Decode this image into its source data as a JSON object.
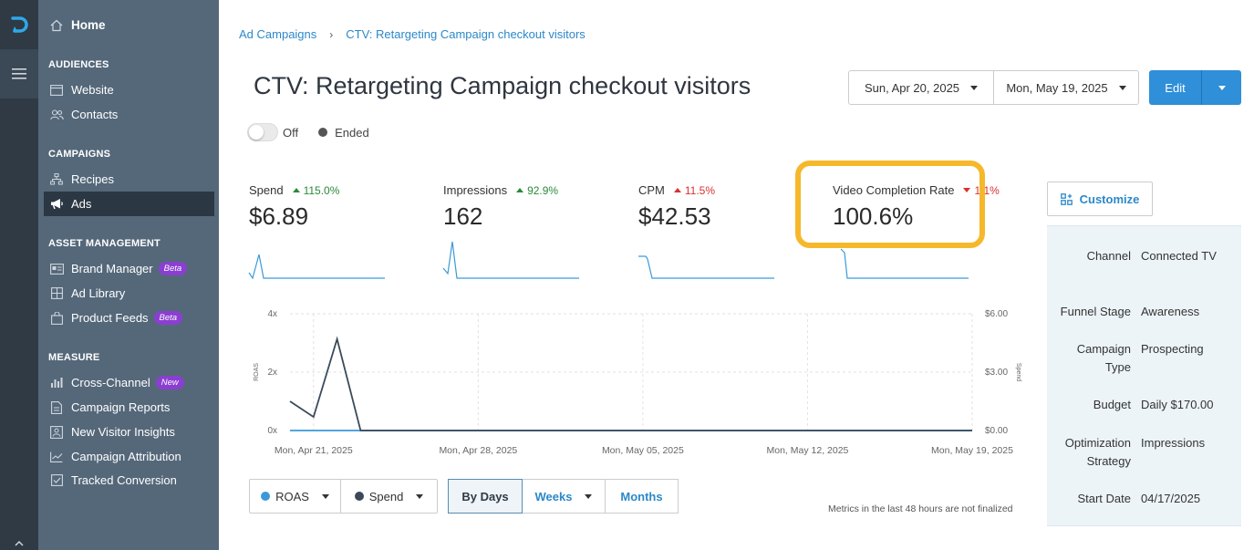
{
  "sidebar": {
    "home": "Home",
    "sections": [
      {
        "title": "AUDIENCES",
        "items": [
          {
            "label": "Website",
            "icon": "browser-icon"
          },
          {
            "label": "Contacts",
            "icon": "users-icon"
          }
        ]
      },
      {
        "title": "CAMPAIGNS",
        "items": [
          {
            "label": "Recipes",
            "icon": "sitemap-icon"
          },
          {
            "label": "Ads",
            "icon": "megaphone-icon",
            "active": true
          }
        ]
      },
      {
        "title": "ASSET MANAGEMENT",
        "items": [
          {
            "label": "Brand Manager",
            "icon": "id-card-icon",
            "badge": "Beta"
          },
          {
            "label": "Ad Library",
            "icon": "grid-icon"
          },
          {
            "label": "Product Feeds",
            "icon": "bag-icon",
            "badge": "Beta"
          }
        ]
      },
      {
        "title": "MEASURE",
        "items": [
          {
            "label": "Cross-Channel",
            "icon": "bar-chart-icon",
            "badge": "New"
          },
          {
            "label": "Campaign Reports",
            "icon": "document-icon"
          },
          {
            "label": "New Visitor Insights",
            "icon": "person-search-icon"
          },
          {
            "label": "Campaign Attribution",
            "icon": "line-chart-icon"
          },
          {
            "label": "Tracked Conversion",
            "icon": "checkbox-icon"
          }
        ]
      }
    ]
  },
  "breadcrumb": {
    "root": "Ad Campaigns",
    "separator": "›",
    "current": "CTV: Retargeting Campaign checkout visitors"
  },
  "page": {
    "title": "CTV: Retargeting Campaign checkout visitors",
    "toggle_label": "Off",
    "status": "Ended"
  },
  "date_range": {
    "start": "Sun, Apr 20, 2025",
    "end": "Mon, May 19, 2025"
  },
  "edit_label": "Edit",
  "metrics": [
    {
      "label": "Spend",
      "change": "115.0%",
      "direction": "up",
      "value": "$6.89"
    },
    {
      "label": "Impressions",
      "change": "92.9%",
      "direction": "up",
      "value": "162"
    },
    {
      "label": "CPM",
      "change": "11.5%",
      "direction": "up-red",
      "value": "$42.53"
    },
    {
      "label": "Video Completion Rate",
      "change": "1.1%",
      "direction": "down",
      "value": "100.6%"
    }
  ],
  "customize_label": "Customize",
  "details": [
    {
      "key": "Channel",
      "value": "Connected TV"
    },
    {
      "key": "Funnel Stage",
      "value": "Awareness"
    },
    {
      "key": "Campaign Type",
      "value": "Prospecting"
    },
    {
      "key": "Budget",
      "value": "Daily $170.00"
    },
    {
      "key": "Optimization Strategy",
      "value": "Impressions"
    },
    {
      "key": "Start Date",
      "value": "04/17/2025"
    }
  ],
  "chart_data": {
    "type": "line",
    "x": [
      "Apr 20",
      "Apr 21",
      "Apr 22",
      "Apr 23",
      "Apr 24",
      "Apr 25",
      "Apr 26",
      "Apr 27",
      "Apr 28",
      "Apr 29",
      "Apr 30",
      "May 01",
      "May 02",
      "May 03",
      "May 04",
      "May 05",
      "May 06",
      "May 07",
      "May 08",
      "May 09",
      "May 10",
      "May 11",
      "May 12",
      "May 13",
      "May 14",
      "May 15",
      "May 16",
      "May 17",
      "May 18",
      "May 19"
    ],
    "x_ticks": [
      "Mon, Apr 21, 2025",
      "Mon, Apr 28, 2025",
      "Mon, May 05, 2025",
      "Mon, May 12, 2025",
      "Mon, May 19, 2025"
    ],
    "y_left_label": "ROAS",
    "y_left_ticks": [
      "0x",
      "2x",
      "4x"
    ],
    "y_left_range": [
      0,
      4
    ],
    "y_right_label": "Spend",
    "y_right_ticks": [
      "$0.00",
      "$3.00",
      "$6.00"
    ],
    "y_right_range": [
      0,
      6
    ],
    "series": [
      {
        "name": "ROAS",
        "axis": "left",
        "color": "#3a9ad9",
        "values": [
          0,
          0,
          0,
          0,
          0,
          0,
          0,
          0,
          0,
          0,
          0,
          0,
          0,
          0,
          0,
          0,
          0,
          0,
          0,
          0,
          0,
          0,
          0,
          0,
          0,
          0,
          0,
          0,
          0,
          0
        ]
      },
      {
        "name": "Spend",
        "axis": "right",
        "color": "#3b4a5a",
        "values": [
          1.5,
          0.7,
          4.7,
          0,
          0,
          0,
          0,
          0,
          0,
          0,
          0,
          0,
          0,
          0,
          0,
          0,
          0,
          0,
          0,
          0,
          0,
          0,
          0,
          0,
          0,
          0,
          0,
          0,
          0,
          0
        ]
      }
    ],
    "grid": true
  },
  "legend_buttons": [
    {
      "label": "ROAS",
      "color": "#3a9ad9"
    },
    {
      "label": "Spend",
      "color": "#3b4a5a"
    }
  ],
  "granularity": {
    "options": [
      "By Days",
      "Weeks",
      "Months"
    ],
    "selected": "By Days"
  },
  "note": "Metrics in the last 48 hours are not finalized",
  "colors": {
    "accent": "#2f8fd8",
    "highlight": "#f6b82b",
    "sidebar": "#55687a",
    "rail": "#2f3a45"
  }
}
